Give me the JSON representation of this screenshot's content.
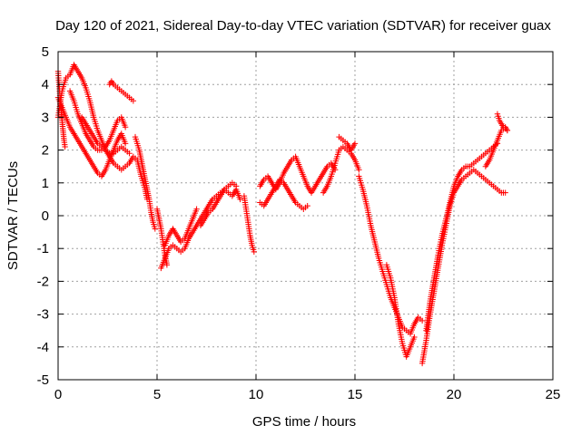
{
  "chart_data": {
    "type": "scatter",
    "title": "Day 120 of 2021, Sidereal Day-to-day VTEC variation (SDTVAR) for receiver guax",
    "xlabel": "GPS time / hours",
    "ylabel": "SDTVAR / TECUs",
    "xlim": [
      0,
      25
    ],
    "ylim": [
      -5,
      5
    ],
    "xticks": [
      "0",
      "5",
      "10",
      "15",
      "20",
      "25"
    ],
    "yticks": [
      "-5",
      "-4",
      "-3",
      "-2",
      "-1",
      "0",
      "1",
      "2",
      "3",
      "4",
      "5"
    ],
    "grid": true,
    "marker": "+",
    "color": "#ff0000",
    "series": [
      {
        "x": [
          0.0,
          0.2,
          0.4,
          0.6,
          0.8,
          1.0,
          1.2,
          1.4,
          1.6,
          1.8,
          2.0,
          2.2,
          2.4,
          2.6,
          2.8,
          3.0,
          3.2,
          3.4,
          3.6,
          3.8,
          4.0,
          4.2,
          4.4,
          4.5
        ],
        "y": [
          3.0,
          3.8,
          4.2,
          4.3,
          4.6,
          4.4,
          4.2,
          3.9,
          3.5,
          3.0,
          2.6,
          2.3,
          2.0,
          1.8,
          1.6,
          1.5,
          1.4,
          1.5,
          1.6,
          1.8,
          1.7,
          1.2,
          0.8,
          0.5
        ]
      },
      {
        "x": [
          0.0,
          0.2,
          0.4,
          0.6,
          0.8,
          1.0,
          1.2,
          1.4,
          1.6,
          1.8,
          2.0,
          2.2,
          2.4,
          2.6,
          2.8,
          3.0,
          3.2,
          3.4
        ],
        "y": [
          3.6,
          3.3,
          3.0,
          2.7,
          2.5,
          2.3,
          2.1,
          1.9,
          1.7,
          1.5,
          1.3,
          1.2,
          1.4,
          1.7,
          2.0,
          2.3,
          2.5,
          2.2
        ]
      },
      {
        "x": [
          0.6,
          0.8,
          1.0,
          1.2,
          1.4,
          1.6,
          1.8,
          2.0,
          2.2,
          2.4,
          2.6,
          2.8,
          3.0,
          3.2,
          3.4
        ],
        "y": [
          3.8,
          3.5,
          3.1,
          2.8,
          2.5,
          2.3,
          2.1,
          2.0,
          2.0,
          2.1,
          2.3,
          2.6,
          2.9,
          3.0,
          2.7
        ]
      },
      {
        "x": [
          1.2,
          1.4,
          1.6,
          1.8,
          2.0,
          2.2,
          2.4,
          2.6,
          2.8,
          3.0,
          3.2,
          3.4,
          3.6
        ],
        "y": [
          3.0,
          2.8,
          2.6,
          2.4,
          2.2,
          2.1,
          2.0,
          1.9,
          1.9,
          2.0,
          2.1,
          2.0,
          1.9
        ]
      },
      {
        "x": [
          2.6,
          2.7,
          2.8,
          2.9,
          3.0,
          3.1,
          3.2,
          3.3,
          3.4,
          3.5,
          3.6,
          3.7,
          3.8
        ],
        "y": [
          4.0,
          4.1,
          4.0,
          3.95,
          3.9,
          3.85,
          3.8,
          3.75,
          3.7,
          3.65,
          3.6,
          3.55,
          3.5
        ]
      },
      {
        "x": [
          0.0,
          0.05,
          0.1,
          0.15,
          0.2,
          0.25,
          0.3,
          0.35
        ],
        "y": [
          4.4,
          4.0,
          3.6,
          3.2,
          2.9,
          2.6,
          2.3,
          2.1
        ]
      },
      {
        "x": [
          3.9,
          4.0,
          4.1,
          4.2,
          4.3,
          4.4,
          4.5,
          4.6,
          4.7,
          4.8,
          4.9
        ],
        "y": [
          2.4,
          2.2,
          2.0,
          1.7,
          1.4,
          1.1,
          0.8,
          0.5,
          0.1,
          -0.2,
          -0.4
        ]
      },
      {
        "x": [
          5.2,
          5.4,
          5.6,
          5.8,
          6.0,
          6.2,
          6.4,
          6.6,
          6.8,
          7.0,
          7.2,
          7.4,
          7.6,
          7.8,
          8.0,
          8.2,
          8.4,
          8.6,
          8.8,
          9.0
        ],
        "y": [
          -1.6,
          -1.3,
          -1.0,
          -0.9,
          -1.0,
          -1.1,
          -1.0,
          -0.7,
          -0.5,
          -0.3,
          -0.1,
          0.1,
          0.3,
          0.5,
          0.6,
          0.7,
          0.8,
          0.9,
          1.0,
          0.9
        ]
      },
      {
        "x": [
          5.4,
          5.6,
          5.8,
          6.0,
          6.2,
          6.4,
          6.6,
          6.8,
          7.0
        ],
        "y": [
          -0.9,
          -0.6,
          -0.4,
          -0.6,
          -0.8,
          -0.7,
          -0.4,
          -0.1,
          0.2
        ]
      },
      {
        "x": [
          5.0,
          5.1,
          5.2,
          5.3,
          5.4,
          5.5
        ],
        "y": [
          0.2,
          -0.1,
          -0.4,
          -0.8,
          -1.2,
          -1.5
        ]
      },
      {
        "x": [
          7.2,
          7.4,
          7.6,
          7.8,
          8.0,
          8.2,
          8.4,
          8.6,
          8.8,
          9.0,
          9.2
        ],
        "y": [
          -0.3,
          -0.1,
          0.1,
          0.2,
          0.4,
          0.6,
          0.8,
          0.7,
          0.6,
          0.8,
          0.5
        ]
      },
      {
        "x": [
          9.4,
          9.5,
          9.6,
          9.7,
          9.8,
          9.9
        ],
        "y": [
          0.6,
          0.2,
          -0.2,
          -0.6,
          -0.9,
          -1.1
        ]
      },
      {
        "x": [
          10.2,
          10.4,
          10.6,
          10.8,
          11.0,
          11.2,
          11.4,
          11.6,
          11.8,
          12.0,
          12.2,
          12.4,
          12.6,
          12.8,
          13.0,
          13.2,
          13.4,
          13.6,
          13.8,
          14.0
        ],
        "y": [
          0.9,
          1.1,
          1.2,
          1.0,
          0.8,
          1.0,
          1.3,
          1.5,
          1.7,
          1.8,
          1.5,
          1.2,
          0.9,
          0.7,
          0.9,
          1.1,
          1.3,
          1.5,
          1.6,
          1.4
        ]
      },
      {
        "x": [
          10.2,
          10.4,
          10.6,
          10.8,
          11.0,
          11.2,
          11.4,
          11.6,
          11.8,
          12.0,
          12.2,
          12.4,
          12.6
        ],
        "y": [
          0.4,
          0.3,
          0.5,
          0.7,
          0.9,
          1.1,
          1.0,
          0.8,
          0.6,
          0.4,
          0.3,
          0.2,
          0.3
        ]
      },
      {
        "x": [
          13.4,
          13.6,
          13.8,
          14.0,
          14.2,
          14.4,
          14.6,
          14.8,
          15.0,
          15.2
        ],
        "y": [
          0.7,
          0.9,
          1.2,
          1.6,
          2.0,
          2.1,
          2.0,
          1.9,
          1.7,
          1.4
        ]
      },
      {
        "x": [
          14.2,
          14.4,
          14.6,
          14.8,
          15.0
        ],
        "y": [
          2.4,
          2.3,
          2.2,
          2.0,
          2.2
        ]
      },
      {
        "x": [
          15.2,
          15.4,
          15.6,
          15.8,
          16.0,
          16.2,
          16.4,
          16.6,
          16.8,
          17.0,
          17.2,
          17.4,
          17.6,
          17.8,
          18.0,
          18.2,
          18.4
        ],
        "y": [
          1.2,
          0.8,
          0.3,
          -0.3,
          -0.8,
          -1.3,
          -1.7,
          -2.1,
          -2.5,
          -2.8,
          -3.1,
          -3.4,
          -3.5,
          -3.6,
          -3.3,
          -3.1,
          -3.2
        ]
      },
      {
        "x": [
          16.6,
          16.8,
          17.0,
          17.2,
          17.4,
          17.6,
          17.8,
          18.0
        ],
        "y": [
          -1.5,
          -1.9,
          -2.5,
          -3.3,
          -3.9,
          -4.3,
          -4.0,
          -3.7
        ]
      },
      {
        "x": [
          18.4,
          18.6,
          18.8,
          19.0,
          19.2,
          19.4,
          19.6,
          19.8,
          20.0,
          20.2,
          20.4,
          20.6,
          20.8,
          21.0,
          21.2,
          21.4,
          21.6,
          21.8,
          22.0,
          22.2,
          22.4,
          22.6
        ],
        "y": [
          -4.5,
          -3.8,
          -3.0,
          -2.3,
          -1.6,
          -0.9,
          -0.3,
          0.3,
          0.7,
          0.9,
          1.1,
          1.2,
          1.3,
          1.4,
          1.3,
          1.2,
          1.1,
          1.0,
          0.9,
          0.8,
          0.7,
          0.7
        ]
      },
      {
        "x": [
          18.6,
          18.8,
          19.0,
          19.2,
          19.4,
          19.6,
          19.8,
          20.0,
          20.2,
          20.4,
          20.6,
          20.8,
          21.0,
          21.2,
          21.4,
          21.6,
          21.8,
          22.0,
          22.2
        ],
        "y": [
          -3.5,
          -2.6,
          -1.9,
          -1.2,
          -0.6,
          -0.1,
          0.4,
          0.9,
          1.2,
          1.4,
          1.5,
          1.5,
          1.6,
          1.7,
          1.8,
          1.9,
          2.0,
          2.1,
          2.2
        ]
      },
      {
        "x": [
          21.6,
          21.8,
          22.0,
          22.2,
          22.4,
          22.6,
          22.7
        ],
        "y": [
          1.5,
          1.7,
          2.0,
          2.3,
          2.6,
          2.7,
          2.6
        ]
      },
      {
        "x": [
          22.2,
          22.3,
          22.4,
          22.5,
          22.6,
          22.7
        ],
        "y": [
          3.1,
          2.9,
          2.8,
          2.7,
          2.65,
          2.6
        ]
      }
    ]
  }
}
